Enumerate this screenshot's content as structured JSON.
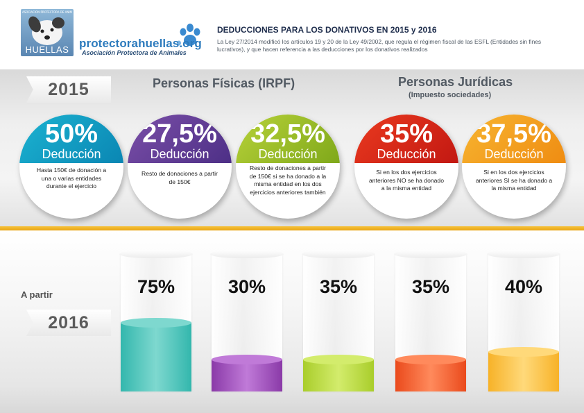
{
  "header": {
    "logo_tagline": "ASOCIACION PROTECTORA DE ANIMALES",
    "logo_word": "HUELLAS",
    "brand": "protectorahuellas.org",
    "brand_sub": "Asociación Protectora de Animales",
    "title": "DEDUCCIONES PARA LOS DONATIVOS EN 2015 y 2016",
    "text": "La Ley 27/2014 modificó los artículos 19 y 20 de la Ley 49/2002, que regula el régimen fiscal de las ESFL (Entidades sin fines lucrativos), y que hacen referencia a las deducciones por los donativos realizados"
  },
  "year_2015": "2015",
  "year_2016": "2016",
  "a_partir": "A partir",
  "sections": {
    "fisicas": {
      "title": "Personas Físicas (IRPF)"
    },
    "juridicas": {
      "title": "Personas Jurídicas",
      "subtitle": "(Impuesto sociedades)"
    }
  },
  "deductions": [
    {
      "pct": "50%",
      "label": "Deducción",
      "desc": "Hasta 150€ de donación a una o varias entidades durante el ejercicio",
      "color": "#1cb3d1",
      "color2": "#0a86b3"
    },
    {
      "pct": "27,5%",
      "label": "Deducción",
      "desc": "Resto de donaciones a partir de 150€",
      "color": "#7b4fa8",
      "color2": "#4d2f86"
    },
    {
      "pct": "32,5%",
      "label": "Deducción",
      "desc": "Resto de donaciones a partir de 150€ si se ha donado a la misma entidad en los dos ejercicios anteriores también",
      "color": "#b8d23a",
      "color2": "#7fa81a"
    },
    {
      "pct": "35%",
      "label": "Deducción",
      "desc": "Si en los dos ejercicios anteriores NO se ha donado a la misma entidad",
      "color": "#ea3a1f",
      "color2": "#c21812"
    },
    {
      "pct": "37,5%",
      "label": "Deducción",
      "desc": "Si en los dos ejercicios anteriores SI se ha donado a la misma entidad",
      "color": "#f7b531",
      "color2": "#ef8c12"
    }
  ],
  "bars": [
    {
      "value": "75%",
      "level": 0.5,
      "color": "#33b7ad",
      "top_color": "#7ed8cf"
    },
    {
      "value": "30%",
      "level": 0.23,
      "color": "#8a3aa8",
      "top_color": "#c07ad8"
    },
    {
      "value": "35%",
      "level": 0.23,
      "color": "#a9cd2b",
      "top_color": "#d3ec6c"
    },
    {
      "value": "35%",
      "level": 0.23,
      "color": "#ea4a1c",
      "top_color": "#ff8a5c"
    },
    {
      "value": "40%",
      "level": 0.29,
      "color": "#f7b228",
      "top_color": "#ffd97a"
    }
  ]
}
